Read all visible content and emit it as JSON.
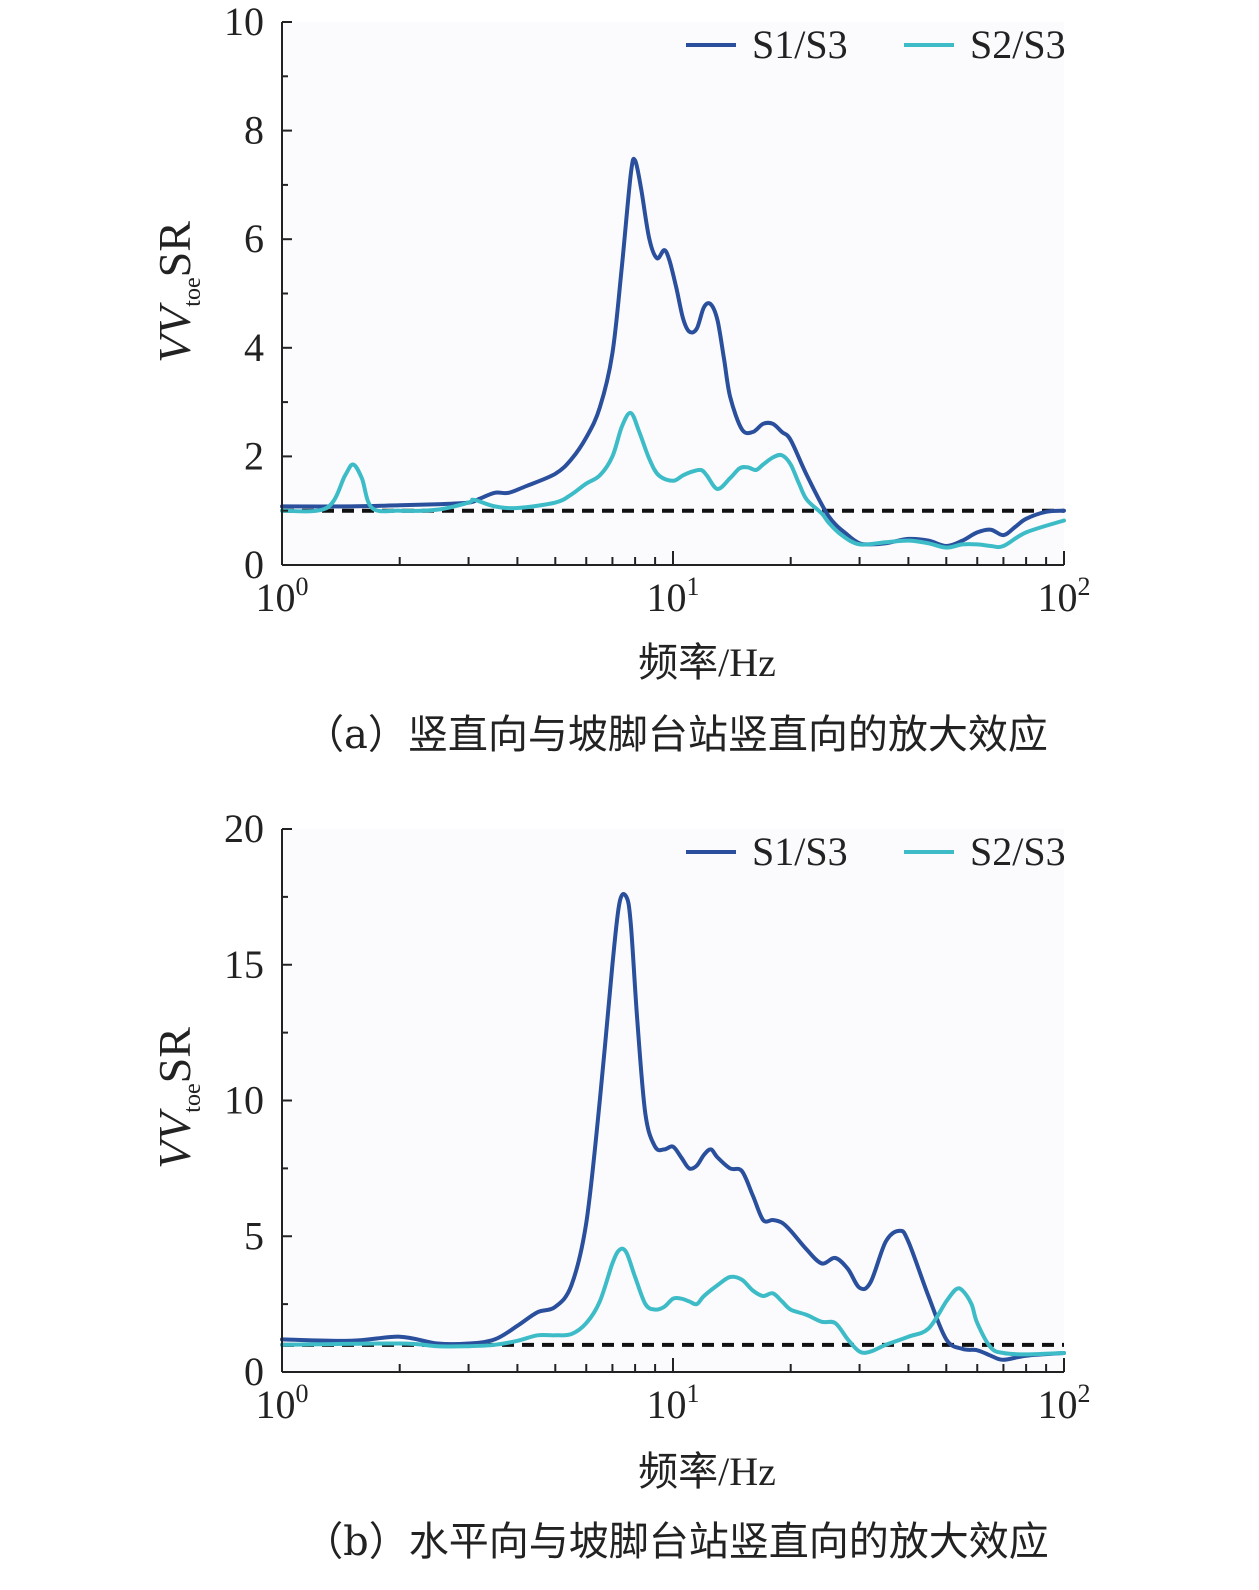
{
  "colors": {
    "S1/S3": "#2a4f9c",
    "S2/S3": "#3dbcc8",
    "reference": "#111111",
    "axis": "#222222"
  },
  "chart_data": [
    {
      "type": "line",
      "caption": "（a）竖直向与坡脚台站竖直向的放大效应",
      "xlabel": "频率/Hz",
      "ylabel": {
        "main": "VV",
        "sub": "toe",
        "suffix": "SR"
      },
      "xscale": "log",
      "xlim": [
        1,
        100
      ],
      "ylim": [
        0,
        10
      ],
      "xticks": [
        {
          "value": 1,
          "base": "10",
          "exp": "0"
        },
        {
          "value": 10,
          "base": "10",
          "exp": "1"
        },
        {
          "value": 100,
          "base": "10",
          "exp": "2"
        }
      ],
      "yticks": [
        0,
        2,
        4,
        6,
        8,
        10
      ],
      "reference_line": 1,
      "legend": {
        "placement": "top-right",
        "entries": [
          "S1/S3",
          "S2/S3"
        ]
      },
      "series": [
        {
          "name": "S1/S3",
          "x": [
            1,
            1.5,
            2,
            2.5,
            3,
            3.2,
            3.5,
            3.8,
            4.2,
            5,
            5.5,
            6,
            6.5,
            7,
            7.4,
            7.8,
            8,
            8.3,
            8.7,
            9.1,
            9.5,
            9.8,
            10.2,
            10.6,
            11,
            11.5,
            12,
            12.5,
            13,
            13.5,
            14,
            15,
            16,
            17,
            18,
            19,
            20,
            22,
            25,
            28,
            30,
            32,
            35,
            40,
            45,
            50,
            55,
            60,
            65,
            70,
            75,
            80,
            90,
            100
          ],
          "y": [
            1.08,
            1.08,
            1.1,
            1.12,
            1.15,
            1.22,
            1.33,
            1.33,
            1.45,
            1.68,
            1.95,
            2.35,
            2.9,
            3.9,
            5.5,
            7.2,
            7.45,
            6.9,
            6.0,
            5.65,
            5.8,
            5.6,
            5.1,
            4.55,
            4.3,
            4.35,
            4.75,
            4.8,
            4.5,
            3.8,
            3.1,
            2.5,
            2.45,
            2.6,
            2.6,
            2.45,
            2.3,
            1.65,
            0.9,
            0.55,
            0.4,
            0.38,
            0.4,
            0.48,
            0.45,
            0.35,
            0.45,
            0.6,
            0.65,
            0.55,
            0.7,
            0.85,
            0.98,
            1.0
          ]
        },
        {
          "name": "S2/S3",
          "x": [
            1,
            1.3,
            1.45,
            1.52,
            1.6,
            1.7,
            2,
            2.5,
            3,
            3.1,
            3.5,
            4,
            5,
            5.5,
            6,
            6.5,
            7,
            7.4,
            7.8,
            8.2,
            8.7,
            9.2,
            10,
            10.6,
            11.2,
            11.8,
            12.2,
            13,
            14,
            14.8,
            15.5,
            16.3,
            17,
            18,
            19,
            20,
            21,
            22,
            24,
            25,
            27,
            30,
            35,
            40,
            45,
            50,
            55,
            60,
            65,
            70,
            80,
            100
          ],
          "y": [
            1.0,
            1.05,
            1.65,
            1.85,
            1.6,
            1.05,
            1.0,
            1.02,
            1.15,
            1.2,
            1.08,
            1.05,
            1.15,
            1.3,
            1.5,
            1.65,
            2.0,
            2.55,
            2.8,
            2.45,
            1.95,
            1.65,
            1.55,
            1.65,
            1.72,
            1.75,
            1.65,
            1.4,
            1.6,
            1.78,
            1.8,
            1.75,
            1.85,
            1.98,
            2.02,
            1.85,
            1.5,
            1.2,
            0.95,
            0.78,
            0.55,
            0.38,
            0.42,
            0.45,
            0.4,
            0.32,
            0.38,
            0.38,
            0.35,
            0.35,
            0.6,
            0.82
          ]
        }
      ]
    },
    {
      "type": "line",
      "caption": "（b）水平向与坡脚台站竖直向的放大效应",
      "xlabel": "频率/Hz",
      "ylabel": {
        "main": "VV",
        "sub": "toe",
        "suffix": "SR"
      },
      "xscale": "log",
      "xlim": [
        1,
        100
      ],
      "ylim": [
        0,
        20
      ],
      "xticks": [
        {
          "value": 1,
          "base": "10",
          "exp": "0"
        },
        {
          "value": 10,
          "base": "10",
          "exp": "1"
        },
        {
          "value": 100,
          "base": "10",
          "exp": "2"
        }
      ],
      "yticks": [
        0,
        5,
        10,
        15,
        20
      ],
      "reference_line": 1,
      "legend": {
        "placement": "top-right",
        "entries": [
          "S1/S3",
          "S2/S3"
        ]
      },
      "series": [
        {
          "name": "S1/S3",
          "x": [
            1,
            1.5,
            2,
            2.5,
            3,
            3.5,
            4,
            4.5,
            5,
            5.5,
            6,
            6.5,
            7,
            7.3,
            7.6,
            7.8,
            8.1,
            8.5,
            9,
            9.5,
            10,
            10.5,
            11,
            11.5,
            12,
            12.5,
            13,
            14,
            15,
            16,
            17,
            18,
            19,
            20,
            22,
            24,
            26,
            28,
            30,
            32,
            35,
            38,
            40,
            45,
            50,
            55,
            60,
            65,
            70,
            80,
            100
          ],
          "y": [
            1.2,
            1.15,
            1.3,
            1.05,
            1.05,
            1.2,
            1.7,
            2.2,
            2.4,
            3.2,
            5.5,
            10.0,
            15.0,
            17.3,
            17.5,
            16.5,
            13.0,
            9.5,
            8.3,
            8.2,
            8.3,
            7.9,
            7.5,
            7.6,
            8.0,
            8.2,
            7.9,
            7.5,
            7.4,
            6.5,
            5.6,
            5.6,
            5.5,
            5.2,
            4.5,
            4.0,
            4.2,
            3.8,
            3.1,
            3.3,
            4.8,
            5.2,
            4.8,
            2.8,
            1.2,
            0.85,
            0.8,
            0.6,
            0.45,
            0.6,
            0.7
          ]
        },
        {
          "name": "S2/S3",
          "x": [
            1,
            2,
            2.5,
            3,
            3.5,
            4,
            4.5,
            5,
            5.5,
            6,
            6.5,
            7,
            7.3,
            7.6,
            8,
            8.5,
            9,
            9.5,
            10,
            10.5,
            11,
            11.5,
            12,
            13,
            14,
            15,
            16,
            17,
            18,
            19,
            20,
            22,
            24,
            26,
            28,
            30,
            32,
            35,
            40,
            45,
            50,
            53,
            55,
            58,
            60,
            65,
            70,
            80,
            100
          ],
          "y": [
            1.0,
            1.05,
            0.95,
            0.95,
            1.0,
            1.15,
            1.35,
            1.35,
            1.4,
            1.8,
            2.6,
            4.0,
            4.5,
            4.4,
            3.5,
            2.5,
            2.3,
            2.4,
            2.7,
            2.7,
            2.6,
            2.5,
            2.8,
            3.2,
            3.5,
            3.4,
            3.0,
            2.8,
            2.9,
            2.6,
            2.3,
            2.1,
            1.85,
            1.8,
            1.2,
            0.75,
            0.75,
            1.0,
            1.3,
            1.6,
            2.6,
            3.05,
            3.0,
            2.5,
            1.8,
            0.9,
            0.7,
            0.65,
            0.7
          ]
        }
      ]
    }
  ]
}
